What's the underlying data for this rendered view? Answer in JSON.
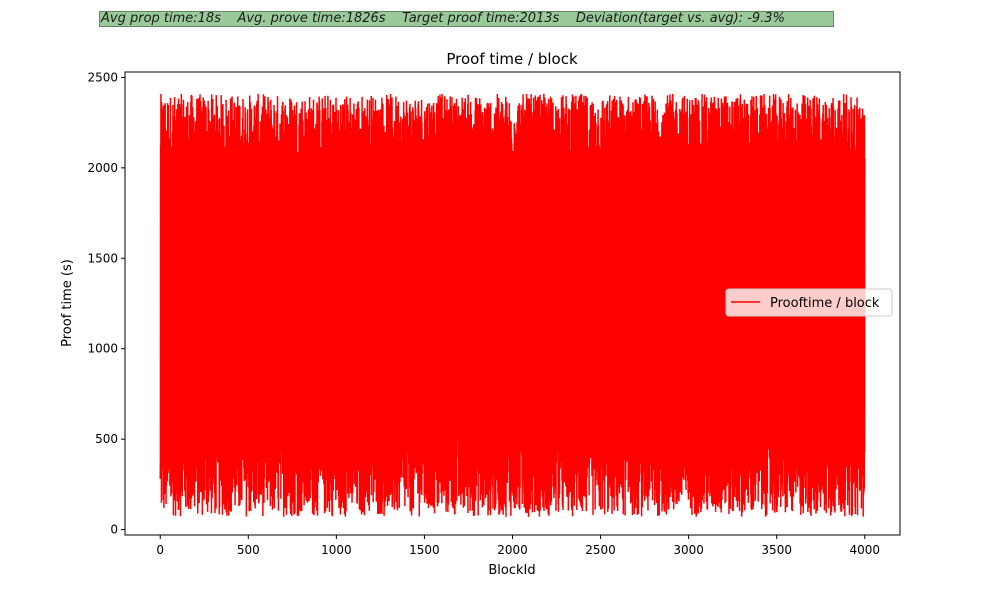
{
  "stats_banner": "Avg prop time:18s    Avg. prove time:1826s    Target proof time:2013s    Deviation(target vs. avg): -9.3%",
  "colors": {
    "line": "#ff0000",
    "banner_bg": "#9aca9a",
    "axes": "#000000"
  },
  "chart_data": {
    "type": "line",
    "title": "Proof time / block",
    "xlabel": "BlockId",
    "ylabel": "Proof time (s)",
    "xlim": [
      -200,
      4200
    ],
    "ylim": [
      -30,
      2530
    ],
    "xticks": [
      0,
      500,
      1000,
      1500,
      2000,
      2500,
      3000,
      3500,
      4000
    ],
    "yticks": [
      0,
      500,
      1000,
      1500,
      2000,
      2500
    ],
    "legend": {
      "placement": "center-right"
    },
    "series": [
      {
        "name": "Prooftime / block",
        "color": "#ff0000",
        "x_range": [
          0,
          4000
        ],
        "n_points": 4001,
        "y_min": 70,
        "y_max": 2410,
        "first_y": 280,
        "last_y": 2050,
        "note_y_distribution": "values oscillate densely between roughly 150 and 2400 s for every block"
      }
    ]
  }
}
